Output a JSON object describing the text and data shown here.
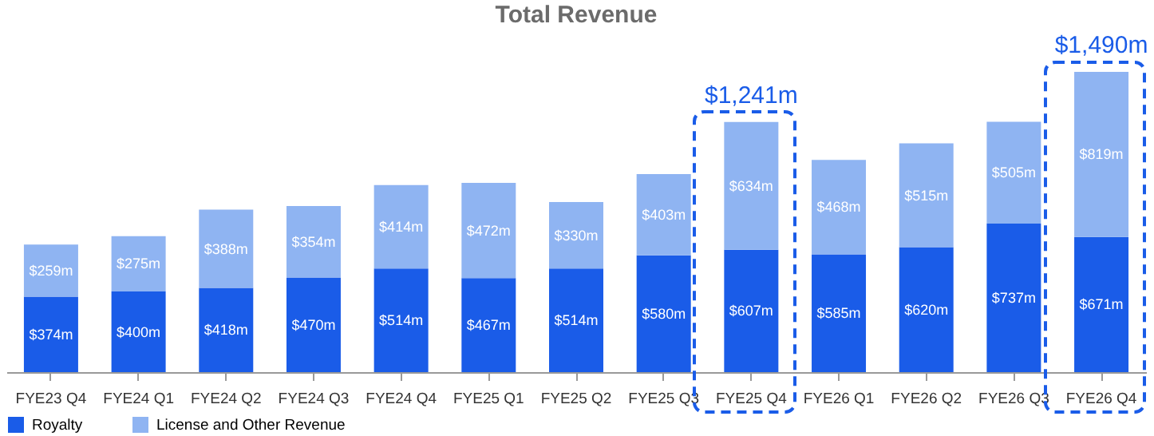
{
  "chart_data": {
    "type": "bar",
    "title": "Total Revenue",
    "stacked": true,
    "legend": "bottom",
    "categories": [
      "FYE23 Q4",
      "FYE24 Q1",
      "FYE24 Q2",
      "FYE24 Q3",
      "FYE24 Q4",
      "FYE25 Q1",
      "FYE25 Q2",
      "FYE25 Q3",
      "FYE25 Q4",
      "FYE26 Q1",
      "FYE26 Q2",
      "FYE26 Q3",
      "FYE26 Q4"
    ],
    "series": [
      {
        "name": "Royalty",
        "color": "#1a5ce8",
        "values": [
          374,
          400,
          418,
          470,
          514,
          467,
          514,
          580,
          607,
          585,
          620,
          737,
          671
        ],
        "value_labels": [
          "$374m",
          "$400m",
          "$418m",
          "$470m",
          "$514m",
          "$467m",
          "$514m",
          "$580m",
          "$607m",
          "$585m",
          "$620m",
          "$737m",
          "$671m"
        ]
      },
      {
        "name": "License and Other Revenue",
        "color": "#8fb4f2",
        "values": [
          259,
          275,
          388,
          354,
          414,
          472,
          330,
          403,
          634,
          468,
          515,
          505,
          819
        ],
        "value_labels": [
          "$259m",
          "$275m",
          "$388m",
          "$354m",
          "$414m",
          "$472m",
          "$330m",
          "$403m",
          "$634m",
          "$468m",
          "$515m",
          "$505m",
          "$819m"
        ]
      }
    ],
    "totals": [
      null,
      null,
      null,
      null,
      null,
      null,
      null,
      null,
      "$1,241m",
      null,
      null,
      null,
      "$1,490m"
    ]
  }
}
